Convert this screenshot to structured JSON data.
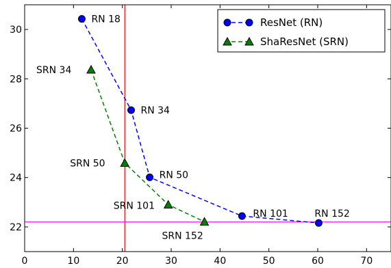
{
  "chart_data": {
    "type": "line",
    "title": "",
    "xlabel": "",
    "ylabel": "",
    "xlim": [
      0,
      75
    ],
    "ylim": [
      21,
      31
    ],
    "x_ticks": [
      0,
      10,
      20,
      30,
      40,
      50,
      60,
      70
    ],
    "y_ticks": [
      22,
      24,
      26,
      28,
      30
    ],
    "grid": false,
    "legend_position": "top-right",
    "series": [
      {
        "name": "ResNet (RN)",
        "color": "#0000ff",
        "marker": "circle",
        "line_style": "dashed",
        "points": [
          {
            "x": 11.7,
            "y": 30.43,
            "label": "RN 18"
          },
          {
            "x": 21.8,
            "y": 26.73,
            "label": "RN 34"
          },
          {
            "x": 25.6,
            "y": 24.01,
            "label": "RN 50"
          },
          {
            "x": 44.5,
            "y": 22.44,
            "label": "RN 101"
          },
          {
            "x": 60.2,
            "y": 22.16,
            "label": "RN 152"
          }
        ]
      },
      {
        "name": "ShaResNet (SRN)",
        "color": "#008000",
        "marker": "triangle",
        "line_style": "dashed",
        "points": [
          {
            "x": 13.6,
            "y": 28.37,
            "label": "SRN 34"
          },
          {
            "x": 20.5,
            "y": 24.59,
            "label": "SRN 50"
          },
          {
            "x": 29.4,
            "y": 22.9,
            "label": "SRN 101"
          },
          {
            "x": 36.8,
            "y": 22.21,
            "label": "SRN 152"
          }
        ]
      }
    ],
    "reference_lines": [
      {
        "orientation": "vertical",
        "value": 20.5,
        "color": "#ff0000"
      },
      {
        "orientation": "horizontal",
        "value": 22.2,
        "color": "#ff00ff"
      }
    ]
  }
}
